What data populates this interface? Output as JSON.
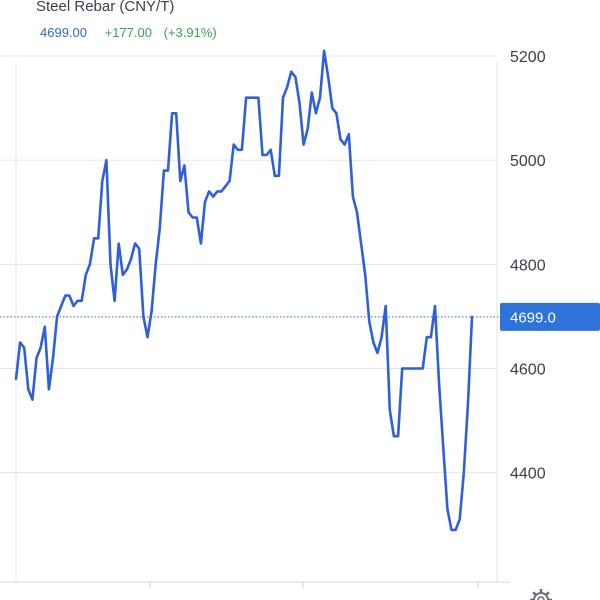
{
  "header": {
    "title": "Steel Rebar (CNY/T)",
    "price": "4699.00",
    "change": "+177.00",
    "change_pct": "(+3.91%)"
  },
  "price_tag": {
    "label": "4699.0",
    "color": "#2f73d9"
  },
  "colors": {
    "line": "#2f5fd9",
    "grid": "#e3e5ea",
    "ref_line": "#2f6ad0",
    "up": "#2fa84f"
  },
  "chart_data": {
    "type": "line",
    "title": "Steel Rebar (CNY/T)",
    "xlabel": "",
    "ylabel": "",
    "ylim": [
      4190,
      5250
    ],
    "yticks": [
      4400,
      4600,
      4800,
      5000,
      5200
    ],
    "grid": true,
    "reference_line": 4699,
    "series": [
      {
        "values": [
          4580,
          4650,
          4640,
          4560,
          4540,
          4620,
          4640,
          4680,
          4560,
          4620,
          4700,
          4720,
          4740,
          4740,
          4720,
          4730,
          4730,
          4780,
          4800,
          4850,
          4850,
          4960,
          5000,
          4800,
          4730,
          4840,
          4780,
          4790,
          4810,
          4840,
          4830,
          4700,
          4660,
          4710,
          4800,
          4870,
          4980,
          4980,
          5090,
          5090,
          4960,
          4990,
          4900,
          4890,
          4890,
          4840,
          4920,
          4940,
          4930,
          4940,
          4940,
          4950,
          4960,
          5030,
          5020,
          5020,
          5120,
          5120,
          5120,
          5120,
          5010,
          5010,
          5020,
          4970,
          4970,
          5120,
          5140,
          5170,
          5160,
          5110,
          5030,
          5060,
          5130,
          5090,
          5120,
          5210,
          5160,
          5100,
          5090,
          5040,
          5030,
          5050,
          4930,
          4900,
          4840,
          4780,
          4690,
          4650,
          4630,
          4660,
          4720,
          4520,
          4470,
          4470,
          4600,
          4600,
          4600,
          4600,
          4600,
          4600,
          4660,
          4660,
          4720,
          4570,
          4450,
          4330,
          4290,
          4290,
          4310,
          4400,
          4530,
          4699
        ]
      }
    ]
  }
}
